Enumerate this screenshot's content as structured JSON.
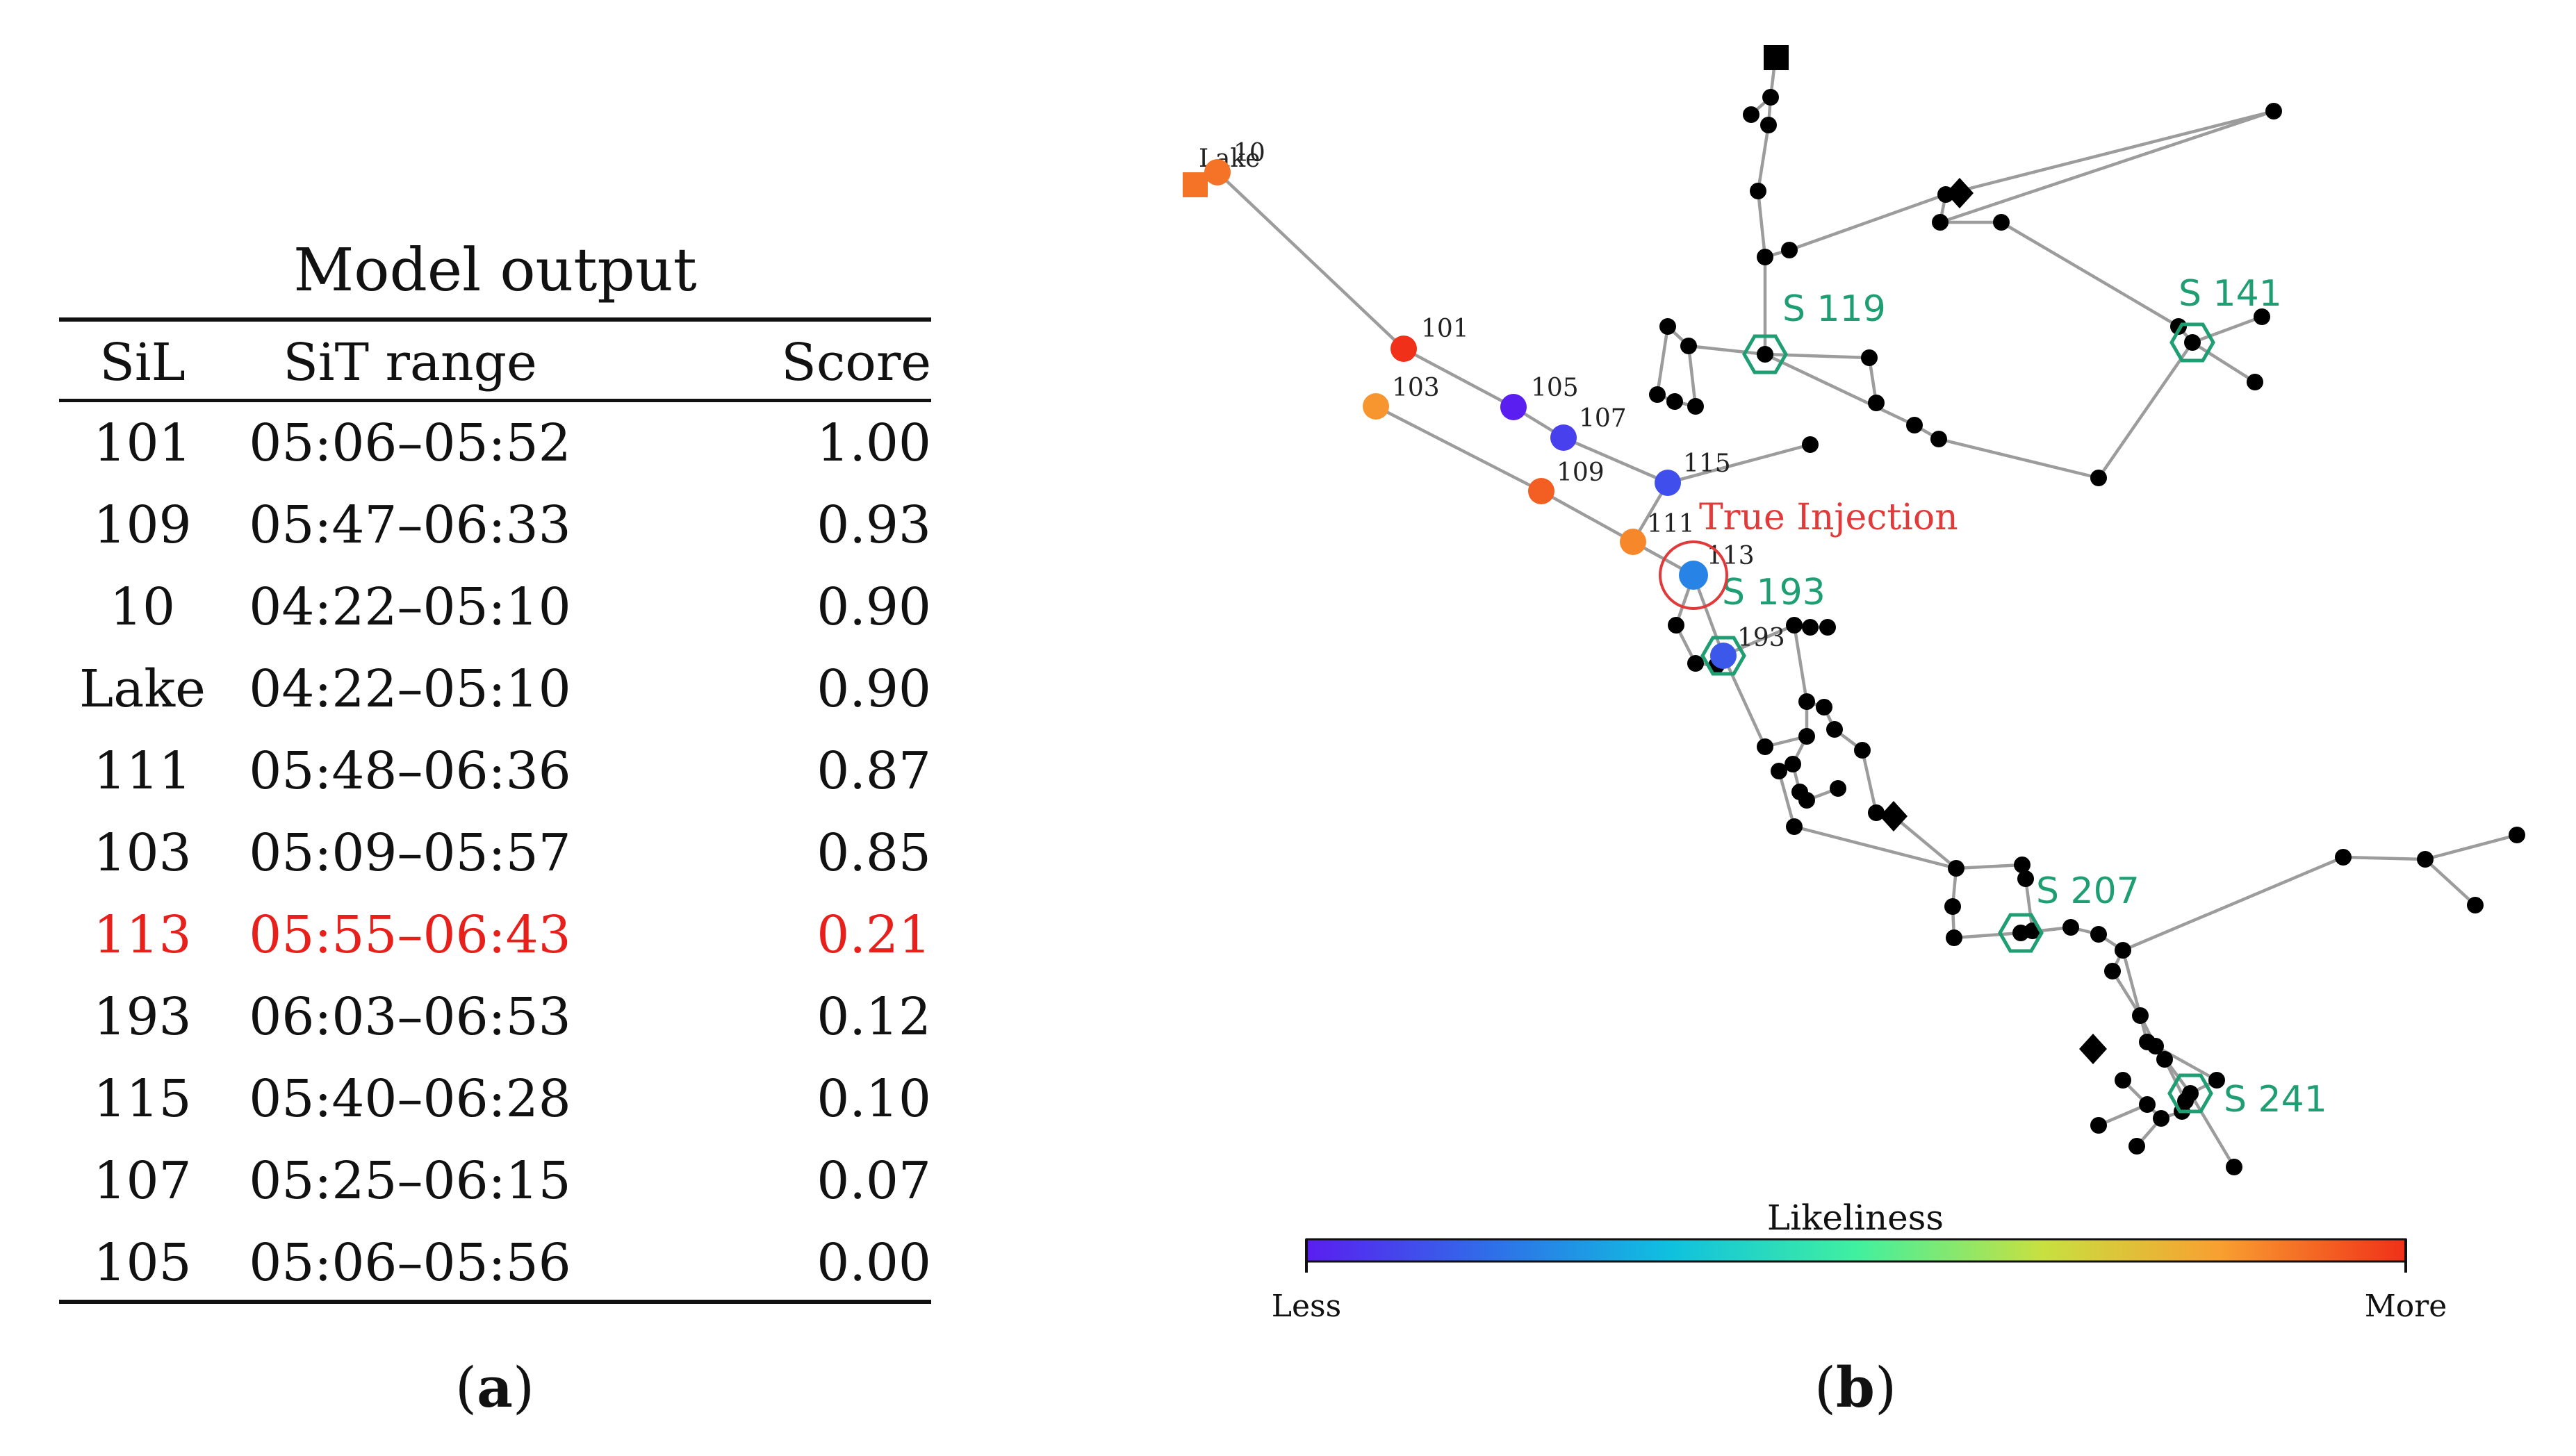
{
  "panel_a": {
    "title": "Model output",
    "headers": {
      "sil": "SiL",
      "sit": "SiT range",
      "score": "Score"
    },
    "rows": [
      {
        "sil": "101",
        "sit": "05:06–05:52",
        "score": "1.00",
        "highlight": false
      },
      {
        "sil": "109",
        "sit": "05:47–06:33",
        "score": "0.93",
        "highlight": false
      },
      {
        "sil": "10",
        "sit": "04:22–05:10",
        "score": "0.90",
        "highlight": false
      },
      {
        "sil": "Lake",
        "sit": "04:22–05:10",
        "score": "0.90",
        "highlight": false
      },
      {
        "sil": "111",
        "sit": "05:48–06:36",
        "score": "0.87",
        "highlight": false
      },
      {
        "sil": "103",
        "sit": "05:09–05:57",
        "score": "0.85",
        "highlight": false
      },
      {
        "sil": "113",
        "sit": "05:55–06:43",
        "score": "0.21",
        "highlight": true
      },
      {
        "sil": "193",
        "sit": "06:03–06:53",
        "score": "0.12",
        "highlight": false
      },
      {
        "sil": "115",
        "sit": "05:40–06:28",
        "score": "0.10",
        "highlight": false
      },
      {
        "sil": "107",
        "sit": "05:25–06:15",
        "score": "0.07",
        "highlight": false
      },
      {
        "sil": "105",
        "sit": "05:06–05:56",
        "score": "0.00",
        "highlight": false
      }
    ],
    "caption_letter": "a",
    "highlight_color": "#e8201c"
  },
  "panel_b": {
    "caption_letter": "b",
    "injection_label": "True Injection",
    "sensors": [
      {
        "label": "S 119"
      },
      {
        "label": "S 141"
      },
      {
        "label": "S 193"
      },
      {
        "label": "S 207"
      },
      {
        "label": "S 241"
      }
    ],
    "scored_nodes": [
      {
        "label": "Lake",
        "score": 0.9
      },
      {
        "label": "10",
        "score": 0.9
      },
      {
        "label": "101",
        "score": 1.0
      },
      {
        "label": "103",
        "score": 0.85
      },
      {
        "label": "105",
        "score": 0.0
      },
      {
        "label": "107",
        "score": 0.07
      },
      {
        "label": "109",
        "score": 0.93
      },
      {
        "label": "115",
        "score": 0.1
      },
      {
        "label": "111",
        "score": 0.87
      },
      {
        "label": "113",
        "score": 0.21
      },
      {
        "label": "193",
        "score": 0.12
      }
    ],
    "colorbar": {
      "title": "Likeliness",
      "low_label": "Less",
      "high_label": "More",
      "colors": [
        "#5a1ef0",
        "#2f6fe8",
        "#0fc0e0",
        "#40f0a0",
        "#c8e040",
        "#f8a030",
        "#f03018"
      ]
    },
    "colors": {
      "sensor": "#1e9e72",
      "injection": "#e03a3a",
      "pipe": "#9c9c9c",
      "junction": "#000000"
    }
  }
}
